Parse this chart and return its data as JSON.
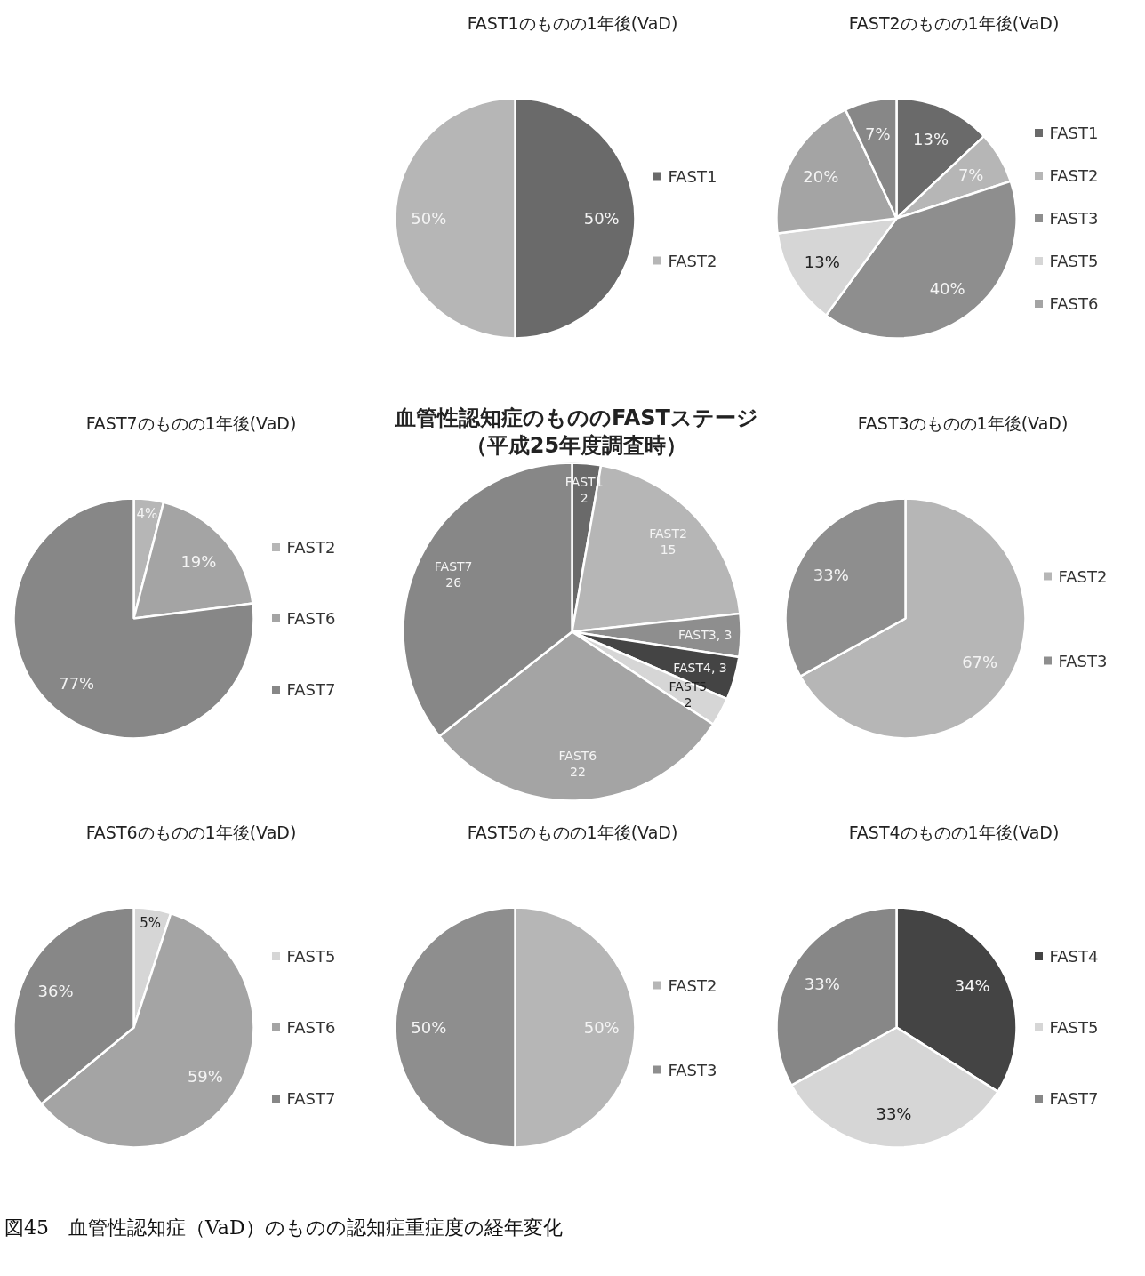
{
  "chart_data": [
    {
      "type": "pie",
      "title": "FAST1のものの1年後(VaD)",
      "categories": [
        "FAST1",
        "FAST2"
      ],
      "values": [
        50,
        50
      ],
      "colors": [
        "#6a6a6a",
        "#b6b6b6"
      ],
      "value_labels": [
        "50%",
        "50%"
      ],
      "legend": "right"
    },
    {
      "type": "pie",
      "title": "FAST2のものの1年後(VaD)",
      "categories": [
        "FAST1",
        "FAST2",
        "FAST3",
        "FAST5",
        "FAST6",
        null
      ],
      "values": [
        13,
        7,
        40,
        13,
        20,
        7
      ],
      "colors": [
        "#6a6a6a",
        "#b6b6b6",
        "#8e8e8e",
        "#d6d6d6",
        "#a4a4a4",
        "#878787"
      ],
      "value_labels": [
        "13%",
        "7%",
        "40%",
        "13%",
        "20%",
        "7%"
      ],
      "legend": "right"
    },
    {
      "type": "pie",
      "title": "FAST7のものの1年後(VaD)",
      "categories": [
        "FAST2",
        "FAST6",
        "FAST7"
      ],
      "values": [
        4,
        19,
        77
      ],
      "colors": [
        "#b6b6b6",
        "#a4a4a4",
        "#878787"
      ],
      "value_labels": [
        "4%",
        "19%",
        "77%"
      ],
      "legend": "right"
    },
    {
      "type": "pie",
      "title": "血管性認知症のもののFASTステージ（平成25年度調査時）",
      "categories": [
        "FAST1",
        "FAST2",
        "FAST3",
        "FAST4",
        "FAST5",
        "FAST6",
        "FAST7"
      ],
      "values": [
        2,
        15,
        3,
        3,
        2,
        22,
        26
      ],
      "colors": [
        "#6a6a6a",
        "#b6b6b6",
        "#8e8e8e",
        "#444444",
        "#d6d6d6",
        "#a4a4a4",
        "#878787"
      ],
      "value_labels": [
        "2",
        "15",
        ", 3",
        ", 3",
        "2",
        "22",
        "26"
      ],
      "annotations": [
        "図45　血管性認知症（VaD）のものの認知症重症度の経年変化"
      ]
    },
    {
      "type": "pie",
      "title": "FAST3のものの1年後(VaD)",
      "categories": [
        "FAST2",
        "FAST3"
      ],
      "values": [
        67,
        33
      ],
      "colors": [
        "#b6b6b6",
        "#8e8e8e"
      ],
      "value_labels": [
        "67%",
        "33%"
      ],
      "legend": "right"
    },
    {
      "type": "pie",
      "title": "FAST6のものの1年後(VaD)",
      "categories": [
        "FAST5",
        "FAST6",
        "FAST7"
      ],
      "values": [
        5,
        59,
        36
      ],
      "colors": [
        "#d6d6d6",
        "#a4a4a4",
        "#878787"
      ],
      "value_labels": [
        "5%",
        "59%",
        "36%"
      ],
      "legend": "right"
    },
    {
      "type": "pie",
      "title": "FAST5のものの1年後(VaD)",
      "categories": [
        "FAST2",
        "FAST3"
      ],
      "values": [
        50,
        50
      ],
      "colors": [
        "#b6b6b6",
        "#8e8e8e"
      ],
      "value_labels": [
        "50%",
        "50%"
      ],
      "legend": "right"
    },
    {
      "type": "pie",
      "title": "FAST4のものの1年後(VaD)",
      "categories": [
        "FAST4",
        "FAST5",
        "FAST7"
      ],
      "values": [
        34,
        33,
        33
      ],
      "colors": [
        "#444444",
        "#d6d6d6",
        "#878787"
      ],
      "value_labels": [
        "34%",
        "33%",
        "33%"
      ],
      "legend": "right"
    }
  ]
}
